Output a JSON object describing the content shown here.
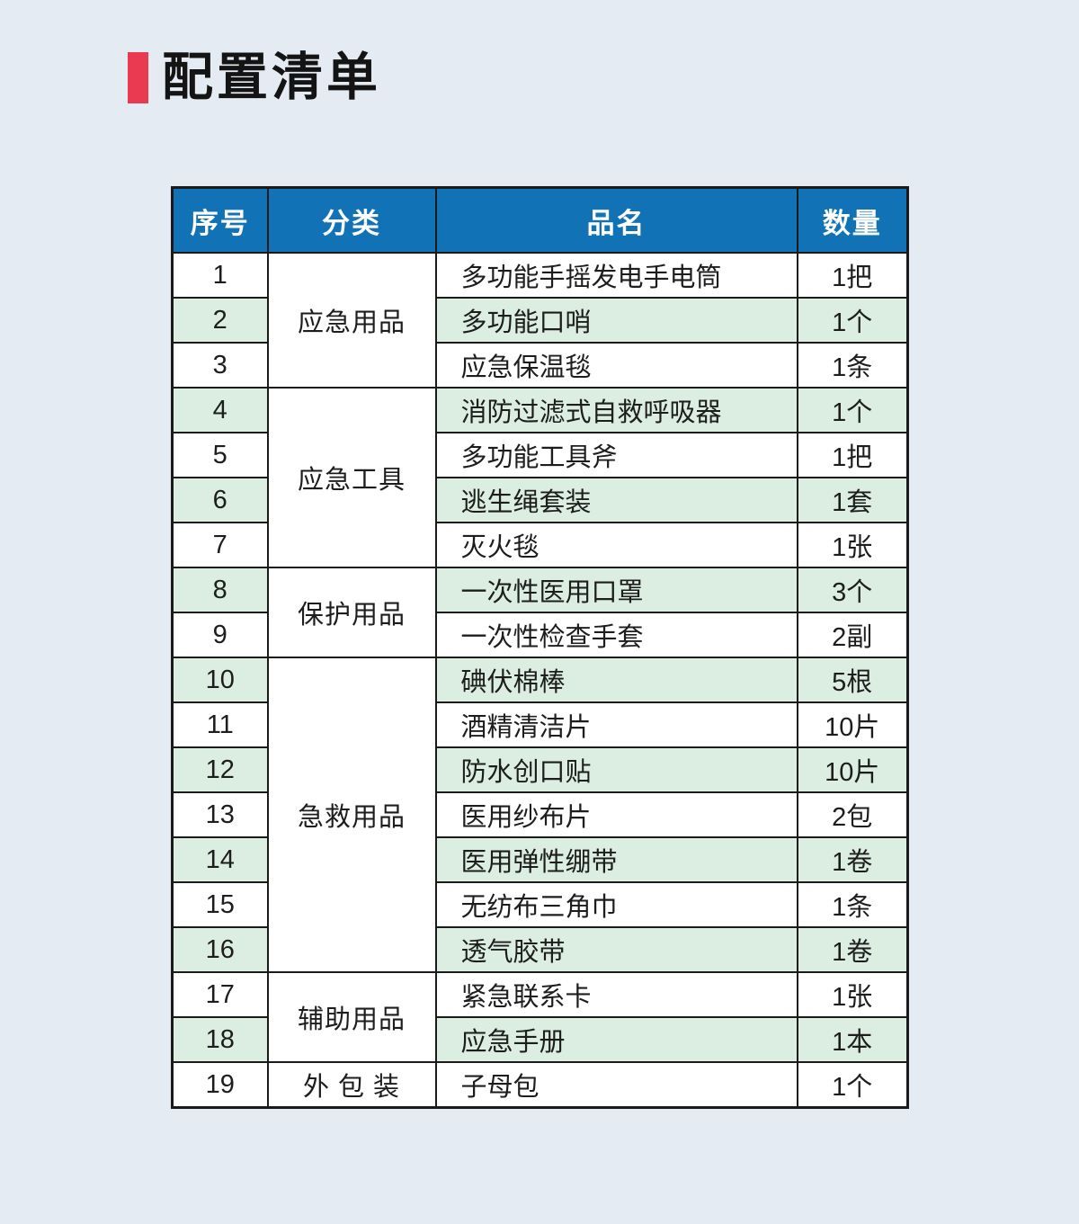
{
  "page": {
    "title": "配置清单",
    "accent_color": "#e93a51",
    "background_color": "#e4ebf2"
  },
  "table": {
    "header": [
      "序号",
      "分类",
      "品名",
      "数量"
    ],
    "header_bg": "#1173b5",
    "stripe_color": "#dceee2",
    "border_color": "#1a1a1a",
    "categories": [
      {
        "label": "应急用品",
        "rowspan": 3
      },
      {
        "label": "应急工具",
        "rowspan": 4
      },
      {
        "label": "保护用品",
        "rowspan": 2
      },
      {
        "label": "急救用品",
        "rowspan": 7
      },
      {
        "label": "辅助用品",
        "rowspan": 2
      },
      {
        "label": "外 包 装",
        "rowspan": 1
      }
    ],
    "rows": [
      {
        "no": "1",
        "category": "应急用品",
        "name": "多功能手摇发电手电筒",
        "qty": "1把"
      },
      {
        "no": "2",
        "category": "应急用品",
        "name": "多功能口哨",
        "qty": "1个"
      },
      {
        "no": "3",
        "category": "应急用品",
        "name": "应急保温毯",
        "qty": "1条"
      },
      {
        "no": "4",
        "category": "应急工具",
        "name": "消防过滤式自救呼吸器",
        "qty": "1个"
      },
      {
        "no": "5",
        "category": "应急工具",
        "name": "多功能工具斧",
        "qty": "1把"
      },
      {
        "no": "6",
        "category": "应急工具",
        "name": "逃生绳套装",
        "qty": "1套"
      },
      {
        "no": "7",
        "category": "应急工具",
        "name": "灭火毯",
        "qty": "1张"
      },
      {
        "no": "8",
        "category": "保护用品",
        "name": "一次性医用口罩",
        "qty": "3个"
      },
      {
        "no": "9",
        "category": "保护用品",
        "name": "一次性检查手套",
        "qty": "2副"
      },
      {
        "no": "10",
        "category": "急救用品",
        "name": "碘伏棉棒",
        "qty": "5根"
      },
      {
        "no": "11",
        "category": "急救用品",
        "name": "酒精清洁片",
        "qty": "10片"
      },
      {
        "no": "12",
        "category": "急救用品",
        "name": "防水创口贴",
        "qty": "10片"
      },
      {
        "no": "13",
        "category": "急救用品",
        "name": "医用纱布片",
        "qty": "2包"
      },
      {
        "no": "14",
        "category": "急救用品",
        "name": "医用弹性绷带",
        "qty": "1卷"
      },
      {
        "no": "15",
        "category": "急救用品",
        "name": "无纺布三角巾",
        "qty": "1条"
      },
      {
        "no": "16",
        "category": "急救用品",
        "name": "透气胶带",
        "qty": "1卷"
      },
      {
        "no": "17",
        "category": "辅助用品",
        "name": "紧急联系卡",
        "qty": "1张"
      },
      {
        "no": "18",
        "category": "辅助用品",
        "name": "应急手册",
        "qty": "1本"
      },
      {
        "no": "19",
        "category": "外 包 装",
        "name": "子母包",
        "qty": "1个"
      }
    ]
  }
}
